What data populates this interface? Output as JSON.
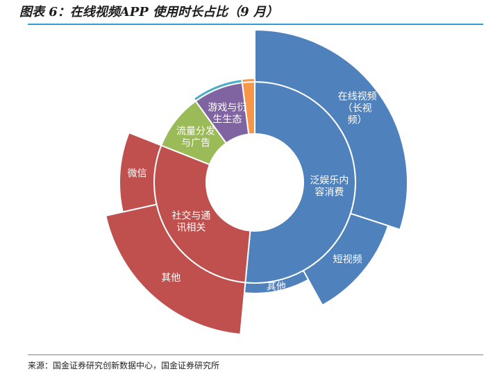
{
  "header": {
    "title": "图表 6：在线视频APP 使用时长占比（9 月）"
  },
  "footer": {
    "source": "来源：国金证券研究创新数据中心，国金证券研究所"
  },
  "chart_data": {
    "type": "sunburst",
    "title": "图表 6：在线视频APP 使用时长占比（9 月）",
    "inner_ring": [
      {
        "name": "泛娱乐内容消费",
        "value": 51.5,
        "color": "#4f81bd",
        "label_lines": [
          "泛娱乐内",
          "容消费"
        ]
      },
      {
        "name": "社交与通讯相关",
        "value": 29.5,
        "color": "#c0504d",
        "label_lines": [
          "社交与通",
          "讯相关"
        ]
      },
      {
        "name": "流量分发与广告",
        "value": 9.0,
        "color": "#9bbb59",
        "label_lines": [
          "流量分发",
          "与广告"
        ]
      },
      {
        "name": "游戏与衍生生态",
        "value": 8.0,
        "color": "#8064a2",
        "label_lines": [
          "游戏与衍",
          "生生态"
        ]
      },
      {
        "name": "other",
        "value": 2.0,
        "color": "#f79646",
        "label_lines": []
      }
    ],
    "outer_ring": [
      {
        "name": "在线视频（长视频）",
        "parent": "泛娱乐内容消费",
        "value": 30.0,
        "color": "#4f81bd",
        "label_lines": [
          "在线视频",
          "（长视",
          "频）"
        ]
      },
      {
        "name": "短视频",
        "parent": "泛娱乐内容消费",
        "value": 12.0,
        "color": "#4f81bd",
        "label_lines": [
          "短视频"
        ]
      },
      {
        "name": "其他",
        "parent": "泛娱乐内容消费",
        "value": 9.5,
        "color": "#4f81bd",
        "label_lines": [
          "其他"
        ]
      },
      {
        "name": "其他",
        "parent": "社交与通讯相关",
        "value": 20.0,
        "color": "#c0504d",
        "label_lines": [
          "其他"
        ]
      },
      {
        "name": "微信",
        "parent": "社交与通讯相关",
        "value": 9.5,
        "color": "#c0504d",
        "label_lines": [
          "微信"
        ]
      },
      {
        "name": "游戏与衍生生态-outer",
        "parent": "游戏与衍生生态",
        "value": 8.0,
        "color": "#4bacc6",
        "label_lines": []
      },
      {
        "name": "other-outer",
        "parent": "other",
        "value": 2.0,
        "color": "#f79646",
        "label_lines": []
      }
    ]
  }
}
